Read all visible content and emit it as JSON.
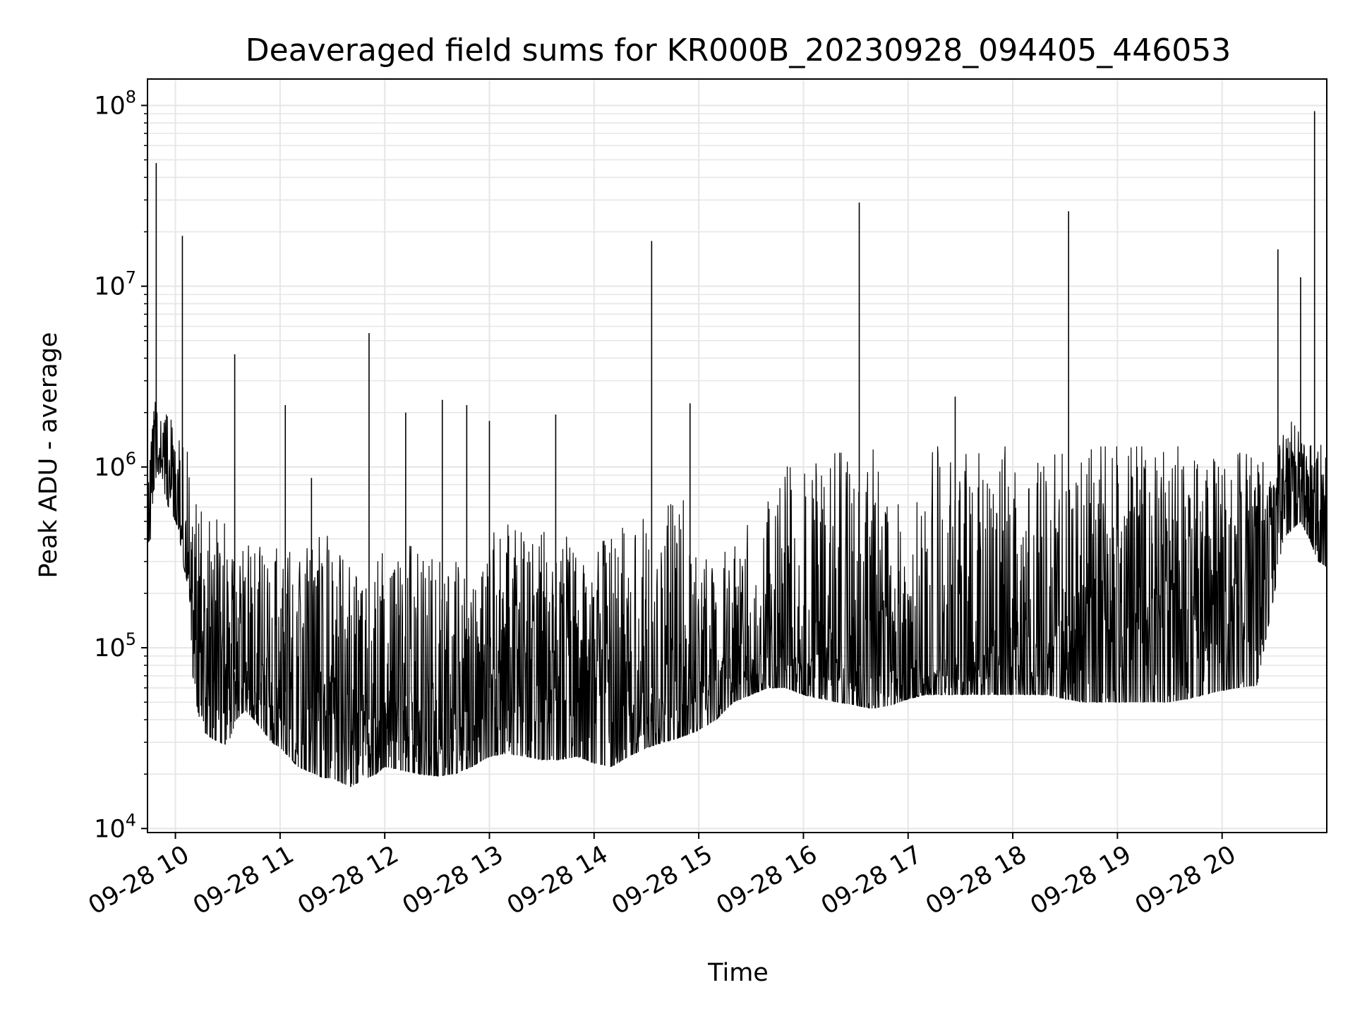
{
  "chart_data": {
    "type": "line",
    "title": "Deaveraged field sums for KR000B_20230928_094405_446053",
    "xlabel": "Time",
    "ylabel": "Peak ADU - average",
    "y_scale": "log",
    "y_ticks": [
      {
        "value": 10000,
        "base": "10",
        "exp": "4"
      },
      {
        "value": 100000,
        "base": "10",
        "exp": "5"
      },
      {
        "value": 1000000,
        "base": "10",
        "exp": "6"
      },
      {
        "value": 10000000,
        "base": "10",
        "exp": "7"
      },
      {
        "value": 100000000,
        "base": "10",
        "exp": "8"
      }
    ],
    "ylim": [
      9500,
      140000000
    ],
    "xlim": [
      "2023-09-28 09:44",
      "2023-09-28 21:00"
    ],
    "x_ticks": [
      {
        "value": "2023-09-28 10:00",
        "label": "09-28 10"
      },
      {
        "value": "2023-09-28 11:00",
        "label": "09-28 11"
      },
      {
        "value": "2023-09-28 12:00",
        "label": "09-28 12"
      },
      {
        "value": "2023-09-28 13:00",
        "label": "09-28 13"
      },
      {
        "value": "2023-09-28 14:00",
        "label": "09-28 14"
      },
      {
        "value": "2023-09-28 15:00",
        "label": "09-28 15"
      },
      {
        "value": "2023-09-28 16:00",
        "label": "09-28 16"
      },
      {
        "value": "2023-09-28 17:00",
        "label": "09-28 17"
      },
      {
        "value": "2023-09-28 18:00",
        "label": "09-28 18"
      },
      {
        "value": "2023-09-28 19:00",
        "label": "09-28 19"
      },
      {
        "value": "2023-09-28 20:00",
        "label": "09-28 20"
      }
    ],
    "grid": true,
    "minor_grid": true,
    "line_color": "#000000",
    "grid_color": "#e6e6e6",
    "series": [
      {
        "x": [
          "2023-09-28 09:44",
          "2023-09-28 09:46",
          "2023-09-28 09:48",
          "2023-09-28 09:50",
          "2023-09-28 09:52",
          "2023-09-28 09:54",
          "2023-09-28 09:56",
          "2023-09-28 09:58",
          "2023-09-28 10:00",
          "2023-09-28 10:02",
          "2023-09-28 10:04",
          "2023-09-28 10:06",
          "2023-09-28 10:08",
          "2023-09-28 10:10",
          "2023-09-28 10:12",
          "2023-09-28 10:15",
          "2023-09-28 10:20",
          "2023-09-28 10:25",
          "2023-09-28 10:30",
          "2023-09-28 10:35",
          "2023-09-28 10:40",
          "2023-09-28 10:45",
          "2023-09-28 10:50",
          "2023-09-28 10:55",
          "2023-09-28 11:00",
          "2023-09-28 11:05",
          "2023-09-28 11:10",
          "2023-09-28 11:15",
          "2023-09-28 11:20",
          "2023-09-28 11:25",
          "2023-09-28 11:30",
          "2023-09-28 11:35",
          "2023-09-28 11:40",
          "2023-09-28 11:45",
          "2023-09-28 11:50",
          "2023-09-28 11:55",
          "2023-09-28 12:00",
          "2023-09-28 12:10",
          "2023-09-28 12:20",
          "2023-09-28 12:30",
          "2023-09-28 12:40",
          "2023-09-28 12:50",
          "2023-09-28 13:00",
          "2023-09-28 13:10",
          "2023-09-28 13:20",
          "2023-09-28 13:30",
          "2023-09-28 13:40",
          "2023-09-28 13:50",
          "2023-09-28 14:00",
          "2023-09-28 14:10",
          "2023-09-28 14:20",
          "2023-09-28 14:30",
          "2023-09-28 14:40",
          "2023-09-28 14:50",
          "2023-09-28 15:00",
          "2023-09-28 15:10",
          "2023-09-28 15:20",
          "2023-09-28 15:30",
          "2023-09-28 15:40",
          "2023-09-28 15:50",
          "2023-09-28 16:00",
          "2023-09-28 16:10",
          "2023-09-28 16:20",
          "2023-09-28 16:30",
          "2023-09-28 16:40",
          "2023-09-28 16:50",
          "2023-09-28 17:00",
          "2023-09-28 17:10",
          "2023-09-28 17:20",
          "2023-09-28 17:30",
          "2023-09-28 17:40",
          "2023-09-28 17:50",
          "2023-09-28 18:00",
          "2023-09-28 18:10",
          "2023-09-28 18:20",
          "2023-09-28 18:30",
          "2023-09-28 18:40",
          "2023-09-28 18:50",
          "2023-09-28 19:00",
          "2023-09-28 19:10",
          "2023-09-28 19:20",
          "2023-09-28 19:30",
          "2023-09-28 19:40",
          "2023-09-28 19:50",
          "2023-09-28 20:00",
          "2023-09-28 20:10",
          "2023-09-28 20:20",
          "2023-09-28 20:30",
          "2023-09-28 20:35",
          "2023-09-28 20:40",
          "2023-09-28 20:45",
          "2023-09-28 20:50",
          "2023-09-28 20:55",
          "2023-09-28 21:00"
        ],
        "hi": [
          900000,
          1400000,
          2800000,
          2000000,
          1800000,
          2100000,
          2300000,
          1700000,
          1200000,
          1800000,
          1600000,
          1500000,
          1400000,
          900000,
          700000,
          600000,
          550000,
          500000,
          480000,
          450000,
          430000,
          400000,
          380000,
          360000,
          350000,
          340000,
          330000,
          360000,
          400000,
          420000,
          410000,
          350000,
          300000,
          250000,
          230000,
          380000,
          400000,
          380000,
          350000,
          320000,
          300000,
          280000,
          420000,
          480000,
          500000,
          450000,
          420000,
          400000,
          380000,
          400000,
          500000,
          600000,
          700000,
          750000,
          300000,
          320000,
          400000,
          500000,
          700000,
          1000000,
          1100000,
          1150000,
          1200000,
          1200000,
          1250000,
          1250000,
          1250000,
          1300000,
          1300000,
          1300000,
          1300000,
          1300000,
          1300000,
          1300000,
          1300000,
          1300000,
          1300000,
          1300000,
          1300000,
          1300000,
          1300000,
          1300000,
          1300000,
          1300000,
          1250000,
          1200000,
          1150000,
          1100000,
          1500000,
          1800000,
          1500000,
          1300000,
          1400000,
          1500000
        ],
        "lo": [
          380000,
          400000,
          800000,
          900000,
          950000,
          700000,
          600000,
          550000,
          500000,
          450000,
          300000,
          250000,
          200000,
          70000,
          50000,
          35000,
          32000,
          30000,
          29000,
          40000,
          45000,
          40000,
          35000,
          30000,
          28000,
          25000,
          22000,
          21000,
          20000,
          19000,
          19000,
          18000,
          17000,
          18000,
          19000,
          20000,
          22000,
          21000,
          20000,
          19500,
          20000,
          22000,
          25000,
          26000,
          25000,
          24000,
          24000,
          25000,
          23000,
          22000,
          25000,
          28000,
          30000,
          32000,
          35000,
          40000,
          50000,
          55000,
          60000,
          60000,
          55000,
          52000,
          50000,
          48000,
          46000,
          48000,
          52000,
          55000,
          55000,
          55000,
          55000,
          55000,
          55000,
          55000,
          55000,
          52000,
          50000,
          50000,
          50000,
          50000,
          50000,
          50000,
          52000,
          55000,
          58000,
          60000,
          62000,
          200000,
          400000,
          450000,
          500000,
          400000,
          300000,
          280000
        ],
        "mid": [
          550000,
          900000,
          1500000,
          1200000,
          1100000,
          1000000,
          900000,
          800000,
          700000,
          600000,
          400000,
          300000,
          200000,
          150000,
          130000,
          110000,
          100000,
          90000,
          80000,
          75000,
          72000,
          70000,
          68000,
          65000,
          60000,
          55000,
          50000,
          48000,
          45000,
          50000,
          60000,
          55000,
          45000,
          40000,
          38000,
          50000,
          60000,
          55000,
          50000,
          45000,
          42000,
          45000,
          60000,
          80000,
          100000,
          120000,
          100000,
          90000,
          80000,
          70000,
          65000,
          60000,
          60000,
          65000,
          70000,
          80000,
          90000,
          95000,
          100000,
          100000,
          95000,
          90000,
          85000,
          80000,
          78000,
          75000,
          72000,
          75000,
          80000,
          85000,
          90000,
          95000,
          100000,
          110000,
          120000,
          130000,
          140000,
          150000,
          160000,
          170000,
          180000,
          200000,
          220000,
          250000,
          300000,
          350000,
          400000,
          600000,
          900000,
          1200000,
          1000000,
          800000,
          700000,
          600000
        ]
      }
    ],
    "spikes": [
      {
        "x": "2023-09-28 09:49",
        "y": 48000000
      },
      {
        "x": "2023-09-28 10:04",
        "y": 19000000
      },
      {
        "x": "2023-09-28 10:34",
        "y": 4200000
      },
      {
        "x": "2023-09-28 11:03",
        "y": 2200000
      },
      {
        "x": "2023-09-28 11:18",
        "y": 870000
      },
      {
        "x": "2023-09-28 11:51",
        "y": 5500000
      },
      {
        "x": "2023-09-28 12:12",
        "y": 2000000
      },
      {
        "x": "2023-09-28 12:33",
        "y": 2350000
      },
      {
        "x": "2023-09-28 12:47",
        "y": 2200000
      },
      {
        "x": "2023-09-28 13:00",
        "y": 1800000
      },
      {
        "x": "2023-09-28 13:38",
        "y": 1950000
      },
      {
        "x": "2023-09-28 14:33",
        "y": 17800000
      },
      {
        "x": "2023-09-28 14:55",
        "y": 2250000
      },
      {
        "x": "2023-09-28 16:32",
        "y": 29000000
      },
      {
        "x": "2023-09-28 17:27",
        "y": 2450000
      },
      {
        "x": "2023-09-28 18:32",
        "y": 26000000
      },
      {
        "x": "2023-09-28 20:32",
        "y": 16000000
      },
      {
        "x": "2023-09-28 20:45",
        "y": 11200000
      },
      {
        "x": "2023-09-28 20:53",
        "y": 93000000
      }
    ]
  }
}
